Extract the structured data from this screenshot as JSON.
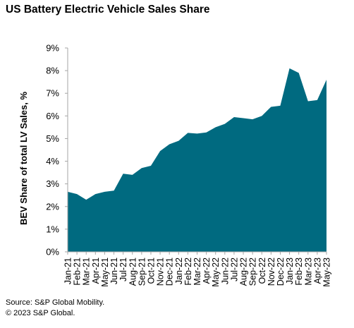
{
  "chart_data": {
    "type": "area",
    "title": "US Battery Electric Vehicle Sales Share",
    "subtitle": "",
    "xlabel": "",
    "ylabel": "BEV Share of total LV Sales, %",
    "ylim": [
      0,
      9
    ],
    "yticks": [
      0,
      1,
      2,
      3,
      4,
      5,
      6,
      7,
      8,
      9
    ],
    "ytick_labels": [
      "0%",
      "1%",
      "2%",
      "3%",
      "4%",
      "5%",
      "6%",
      "7%",
      "8%",
      "9%"
    ],
    "grid": false,
    "legend": "none",
    "color": "#006A80",
    "categories": [
      "Jan-21",
      "Feb-21",
      "Mar-21",
      "Apr-21",
      "May-21",
      "Jun-21",
      "Jul-21",
      "Aug-21",
      "Sep-21",
      "Oct-21",
      "Nov-21",
      "Dec-21",
      "Jan-22",
      "Feb-22",
      "Mar-22",
      "Apr-22",
      "May-22",
      "Jun-22",
      "Jul-22",
      "Aug-22",
      "Sep-22",
      "Oct-22",
      "Nov-22",
      "Dec-22",
      "Jan-23",
      "Feb-23",
      "Mar-23",
      "Apr-23",
      "May-23"
    ],
    "values": [
      2.65,
      2.55,
      2.3,
      2.55,
      2.65,
      2.7,
      3.45,
      3.4,
      3.7,
      3.8,
      4.45,
      4.75,
      4.9,
      5.25,
      5.22,
      5.27,
      5.5,
      5.65,
      5.95,
      5.9,
      5.85,
      6.0,
      6.4,
      6.45,
      8.1,
      7.9,
      6.65,
      6.7,
      7.6
    ]
  },
  "footer": {
    "source": "Source: S&P Global Mobility.",
    "copyright": "© 2023 S&P Global."
  }
}
